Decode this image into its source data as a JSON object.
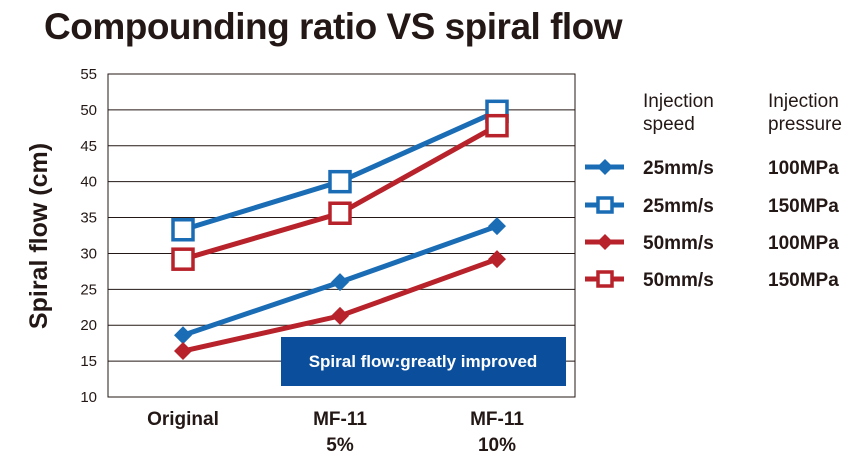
{
  "chart_data": {
    "type": "line",
    "title": "Compounding ratio VS spiral flow",
    "ylabel": "Spiral flow (cm)",
    "xlabel": "",
    "categories": [
      [
        "Original"
      ],
      [
        "MF-11",
        "5%"
      ],
      [
        "MF-11",
        "10%"
      ]
    ],
    "ylim": [
      10,
      55
    ],
    "yticks": [
      10,
      15,
      20,
      25,
      30,
      35,
      40,
      45,
      50,
      55
    ],
    "grid": true,
    "legend_position": "right",
    "legend_headers": {
      "speed": [
        "Injection",
        "speed"
      ],
      "pressure": [
        "Injection",
        "pressure"
      ]
    },
    "series": [
      {
        "speed": "25mm/s",
        "pressure": "100MPa",
        "color": "#1a6db5",
        "marker": "filled-diamond",
        "values": [
          18.6,
          26.0,
          33.8
        ]
      },
      {
        "speed": "25mm/s",
        "pressure": "150MPa",
        "color": "#1a6db5",
        "marker": "open-square",
        "values": [
          33.3,
          40.0,
          49.8
        ]
      },
      {
        "speed": "50mm/s",
        "pressure": "100MPa",
        "color": "#b8222a",
        "marker": "filled-diamond",
        "values": [
          16.4,
          21.3,
          29.2
        ]
      },
      {
        "speed": "50mm/s",
        "pressure": "150MPa",
        "color": "#b8222a",
        "marker": "open-square",
        "values": [
          29.2,
          35.6,
          47.8
        ]
      }
    ],
    "annotation": {
      "text": "Spiral flow:greatly improved",
      "background": "#0b4f9c"
    }
  }
}
